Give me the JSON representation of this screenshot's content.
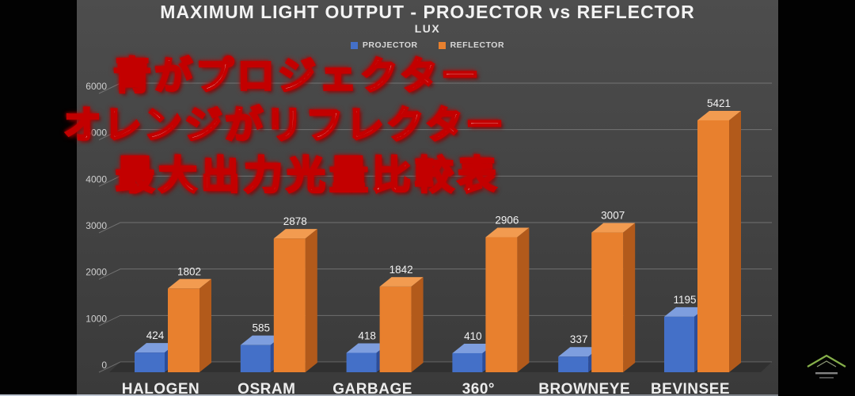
{
  "chart": {
    "title": "MAXIMUM LIGHT OUTPUT - PROJECTOR vs REFLECTOR",
    "subtitle": "LUX",
    "legend": {
      "projector_label": "PROJECTOR",
      "reflector_label": "REFLECTOR"
    }
  },
  "chart_data": {
    "type": "bar",
    "style": "3d-column",
    "title": "MAXIMUM LIGHT OUTPUT - PROJECTOR vs REFLECTOR",
    "subtitle": "LUX",
    "xlabel": "",
    "ylabel": "LUX",
    "categories": [
      "HALOGEN",
      "OSRAM",
      "GARBAGE",
      "360°",
      "BROWNEYE",
      "BEVINSEE"
    ],
    "series": [
      {
        "name": "PROJECTOR",
        "values": [
          424,
          585,
          418,
          410,
          337,
          1195
        ],
        "color": "#4470c8",
        "color_top": "#7e9ede",
        "color_side": "#2c4d99"
      },
      {
        "name": "REFLECTOR",
        "values": [
          1802,
          2878,
          1842,
          2906,
          3007,
          5421
        ],
        "color": "#e8802e",
        "color_top": "#f29b50",
        "color_side": "#b25a1b"
      }
    ],
    "ylim": [
      0,
      6000
    ],
    "yticks": [
      0,
      1000,
      2000,
      3000,
      4000,
      5000,
      6000
    ],
    "grid": true,
    "legend_position": "top",
    "value_labels_shown": true
  },
  "overlay": {
    "lines": [
      "青がプロジェクター",
      "オレンジがリフレクター",
      "最大出力光量比較表"
    ],
    "fill_color": "#ffffff",
    "outline_color": "#c30000"
  },
  "colors": {
    "frame_background": "#454545",
    "letterbox": "#020202",
    "title_text": "#f3f3f3",
    "axis_text": "#cfcfcf",
    "category_text": "#ededed",
    "gridline": "#a0a0a0",
    "projector_blue": "#4470c8",
    "reflector_orange": "#e8802e",
    "watermark_green": "#86b04a"
  },
  "watermark": {
    "icon": "chevron-roof-icon"
  }
}
